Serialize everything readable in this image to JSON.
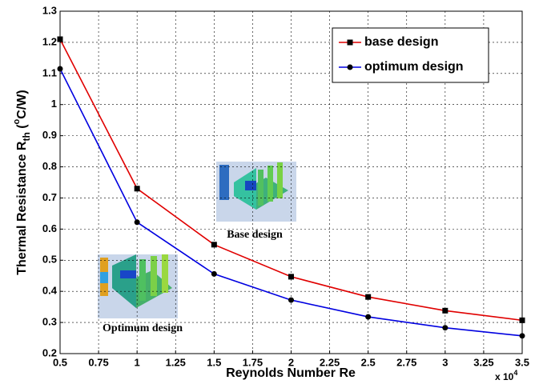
{
  "chart_data": {
    "type": "line",
    "x_label": "Reynolds Number Re",
    "x_multiplier": "x 10",
    "x_multiplier_exp": "4",
    "y_label_parts": [
      "Thermal Resistance R",
      "th",
      " (",
      "o",
      "C/W)"
    ],
    "x": [
      0.5,
      1,
      1.5,
      2,
      2.5,
      3,
      3.5
    ],
    "series": [
      {
        "name": "base design",
        "color": "#e00000",
        "marker": "square",
        "values": [
          1.21,
          0.73,
          0.55,
          0.447,
          0.382,
          0.338,
          0.307
        ]
      },
      {
        "name": "optimum design",
        "color": "#0000e0",
        "marker": "circle",
        "values": [
          1.115,
          0.622,
          0.456,
          0.372,
          0.318,
          0.283,
          0.257
        ]
      }
    ],
    "xlim": [
      0.5,
      3.5
    ],
    "xticks": [
      0.5,
      0.75,
      1,
      1.25,
      1.5,
      1.75,
      2,
      2.25,
      2.5,
      2.75,
      3,
      3.25,
      3.5
    ],
    "ylim": [
      0.2,
      1.3
    ],
    "yticks": [
      0.2,
      0.3,
      0.4,
      0.5,
      0.6,
      0.7,
      0.8,
      0.9,
      1,
      1.1,
      1.2,
      1.3
    ],
    "grid": true,
    "legend": "upper right",
    "annotations": [
      "Base design",
      "Optimum design"
    ]
  }
}
